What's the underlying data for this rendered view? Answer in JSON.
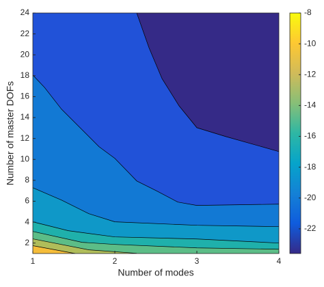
{
  "chart_data": {
    "type": "contour",
    "xlabel": "Number of modes",
    "ylabel": "Number of master DOFs",
    "xlim": [
      1,
      4
    ],
    "ylim": [
      1,
      24
    ],
    "xticks": [
      1,
      2,
      3,
      4
    ],
    "yticks": [
      2,
      4,
      6,
      8,
      10,
      12,
      14,
      16,
      18,
      20,
      22,
      24
    ],
    "base_color": "#352a87",
    "contours": [
      {
        "level": -22,
        "color": "#2152d8",
        "x": [
          2.267,
          2.417,
          2.575,
          2.783,
          3,
          3.35,
          4
        ],
        "y": [
          24,
          20.67,
          17.73,
          15.12,
          13.03,
          12.19,
          10.75
        ]
      },
      {
        "level": -20,
        "color": "#1279d4",
        "x": [
          1,
          1.142,
          1.35,
          1.6,
          1.808,
          2,
          2.267,
          2.517,
          2.767,
          3,
          4
        ],
        "y": [
          18.06,
          16.89,
          14.8,
          12.84,
          11.21,
          10.1,
          7.94,
          6.96,
          5.92,
          5.6,
          5.72
        ]
      },
      {
        "level": -18,
        "color": "#0f98c8",
        "x": [
          1,
          1.35,
          1.683,
          2,
          3,
          4
        ],
        "y": [
          7.29,
          6.11,
          4.81,
          4.03,
          3.7,
          3.57
        ]
      },
      {
        "level": -16,
        "color": "#1fb0ab",
        "x": [
          1,
          1.433,
          2,
          3,
          4
        ],
        "y": [
          4.03,
          3.18,
          2.59,
          2.39,
          2.0
        ]
      },
      {
        "level": -14,
        "color": "#5cbd87",
        "x": [
          1,
          1.6,
          2,
          3,
          4
        ],
        "y": [
          3.11,
          2.07,
          1.87,
          1.54,
          1.41
        ]
      },
      {
        "level": -12,
        "color": "#b0bd5a",
        "x": [
          1,
          1.683,
          2.267
        ],
        "y": [
          2.4,
          1.35,
          1.02
        ]
      },
      {
        "level": -10,
        "color": "#f5bd3a",
        "x": [
          1,
          1.517
        ],
        "y": [
          1.75,
          1
        ]
      }
    ],
    "colorbar": {
      "clim": [
        -23.6,
        -8
      ],
      "ticks": [
        -8,
        -10,
        -12,
        -14,
        -16,
        -18,
        -20,
        -22
      ],
      "colormap": [
        "#352a87",
        "#0f5cdd",
        "#1481d6",
        "#06a4ca",
        "#2eb7a4",
        "#87bf77",
        "#d1bb59",
        "#fec832",
        "#f9fb0e"
      ]
    }
  }
}
